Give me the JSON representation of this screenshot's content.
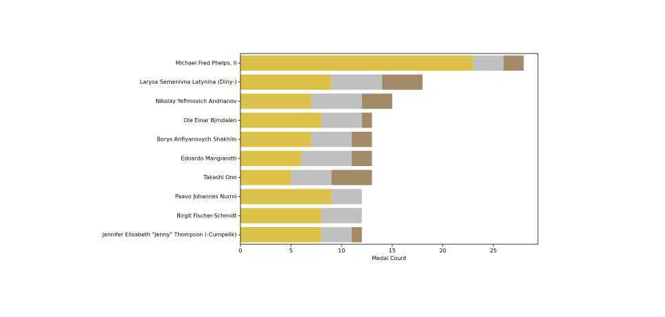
{
  "chart_data": {
    "type": "bar",
    "orientation": "horizontal",
    "stacked": true,
    "title": "",
    "xlabel": "Medal Count",
    "ylabel": "",
    "xlim": [
      0,
      29.4
    ],
    "xticks": [
      0,
      5,
      10,
      15,
      20,
      25
    ],
    "grid": false,
    "legend": "none",
    "categories": [
      "Michael Fred Phelps, II",
      "Larysa Semenivna Latynina (Diriy-)",
      "Nikolay Yefimovich Andrianov",
      "Ole Einar Bjrndalen",
      "Borys Anfiyanovych Shakhlin",
      "Edoardo Mangiarotti",
      "Takashi Ono",
      "Paavo Johannes Nurmi",
      "Birgit Fischer-Schmidt",
      "Jennifer Elisabeth \"Jenny\" Thompson (-Cumpelik)"
    ],
    "series": [
      {
        "color": "#dbc149",
        "values": [
          23,
          9,
          7,
          8,
          7,
          6,
          5,
          9,
          8,
          8
        ]
      },
      {
        "color": "#c0c0c0",
        "values": [
          3,
          5,
          5,
          4,
          4,
          5,
          4,
          3,
          4,
          3
        ]
      },
      {
        "color": "#a38b67",
        "values": [
          2,
          4,
          3,
          1,
          2,
          2,
          4,
          0,
          0,
          1
        ]
      }
    ]
  }
}
